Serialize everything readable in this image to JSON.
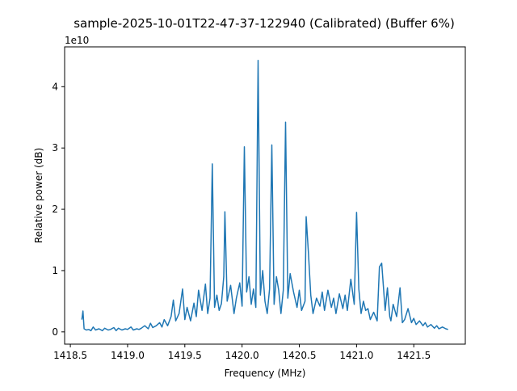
{
  "chart_data": {
    "type": "line",
    "title": "sample-2025-10-01T22-47-37-122940 (Calibrated) (Buffer 6%)",
    "xlabel": "Frequency (MHz)",
    "ylabel": "Relative power (dB)",
    "y_offset_label": "1e10",
    "xlim": [
      1418.45,
      1421.95
    ],
    "ylim": [
      -0.2,
      4.65
    ],
    "x_ticks": [
      1418.5,
      1419.0,
      1419.5,
      1420.0,
      1420.5,
      1421.0,
      1421.5
    ],
    "x_tick_labels": [
      "1418.5",
      "1419.0",
      "1419.5",
      "1420.0",
      "1420.5",
      "1421.0",
      "1421.5"
    ],
    "y_ticks": [
      0,
      1,
      2,
      3,
      4
    ],
    "y_tick_labels": [
      "0",
      "1",
      "2",
      "3",
      "4"
    ],
    "grid": false,
    "line_color": "#1f77b4",
    "series": [
      {
        "x": [
          1418.6,
          1418.61,
          1418.62,
          1418.64,
          1418.66,
          1418.68,
          1418.7,
          1418.72,
          1418.75,
          1418.78,
          1418.8,
          1418.83,
          1418.85,
          1418.88,
          1418.9,
          1418.92,
          1418.95,
          1418.98,
          1419.0,
          1419.03,
          1419.05,
          1419.08,
          1419.1,
          1419.12,
          1419.15,
          1419.18,
          1419.2,
          1419.22,
          1419.25,
          1419.28,
          1419.3,
          1419.32,
          1419.35,
          1419.38,
          1419.4,
          1419.42,
          1419.45,
          1419.48,
          1419.5,
          1419.52,
          1419.55,
          1419.58,
          1419.6,
          1419.62,
          1419.65,
          1419.68,
          1419.7,
          1419.72,
          1419.74,
          1419.76,
          1419.78,
          1419.8,
          1419.82,
          1419.84,
          1419.85,
          1419.87,
          1419.9,
          1419.93,
          1419.95,
          1419.98,
          1420.0,
          1420.02,
          1420.04,
          1420.06,
          1420.08,
          1420.1,
          1420.12,
          1420.14,
          1420.16,
          1420.18,
          1420.2,
          1420.22,
          1420.24,
          1420.26,
          1420.28,
          1420.3,
          1420.32,
          1420.34,
          1420.36,
          1420.38,
          1420.4,
          1420.42,
          1420.45,
          1420.48,
          1420.5,
          1420.52,
          1420.55,
          1420.56,
          1420.58,
          1420.6,
          1420.62,
          1420.65,
          1420.68,
          1420.7,
          1420.72,
          1420.75,
          1420.78,
          1420.8,
          1420.82,
          1420.85,
          1420.88,
          1420.9,
          1420.92,
          1420.95,
          1420.98,
          1421.0,
          1421.02,
          1421.04,
          1421.06,
          1421.08,
          1421.1,
          1421.12,
          1421.15,
          1421.18,
          1421.2,
          1421.22,
          1421.25,
          1421.27,
          1421.29,
          1421.3,
          1421.32,
          1421.35,
          1421.38,
          1421.4,
          1421.42,
          1421.45,
          1421.48,
          1421.5,
          1421.52,
          1421.55,
          1421.58,
          1421.6,
          1421.62,
          1421.65,
          1421.68,
          1421.7,
          1421.72,
          1421.75,
          1421.78,
          1421.8
        ],
        "y": [
          0.2,
          0.34,
          0.05,
          0.03,
          0.04,
          0.02,
          0.08,
          0.03,
          0.05,
          0.02,
          0.06,
          0.03,
          0.04,
          0.07,
          0.02,
          0.06,
          0.03,
          0.05,
          0.04,
          0.08,
          0.03,
          0.05,
          0.04,
          0.06,
          0.1,
          0.05,
          0.14,
          0.07,
          0.1,
          0.15,
          0.08,
          0.2,
          0.1,
          0.25,
          0.52,
          0.18,
          0.3,
          0.7,
          0.2,
          0.4,
          0.18,
          0.47,
          0.25,
          0.68,
          0.35,
          0.78,
          0.3,
          0.55,
          2.74,
          0.4,
          0.6,
          0.35,
          0.46,
          0.9,
          1.96,
          0.5,
          0.76,
          0.3,
          0.55,
          0.8,
          0.42,
          3.02,
          0.65,
          0.9,
          0.45,
          0.7,
          0.4,
          4.43,
          0.6,
          1.0,
          0.5,
          0.3,
          0.7,
          3.05,
          0.45,
          0.9,
          0.68,
          0.3,
          0.68,
          3.42,
          0.55,
          0.95,
          0.65,
          0.4,
          0.68,
          0.35,
          0.5,
          1.88,
          1.27,
          0.6,
          0.3,
          0.55,
          0.42,
          0.65,
          0.35,
          0.68,
          0.4,
          0.55,
          0.3,
          0.62,
          0.38,
          0.6,
          0.35,
          0.86,
          0.45,
          1.95,
          0.7,
          0.3,
          0.5,
          0.35,
          0.38,
          0.2,
          0.32,
          0.18,
          1.06,
          1.12,
          0.35,
          0.72,
          0.25,
          0.18,
          0.45,
          0.25,
          0.72,
          0.15,
          0.2,
          0.38,
          0.15,
          0.22,
          0.12,
          0.18,
          0.1,
          0.15,
          0.08,
          0.12,
          0.06,
          0.1,
          0.05,
          0.08,
          0.05,
          0.04
        ]
      }
    ]
  }
}
